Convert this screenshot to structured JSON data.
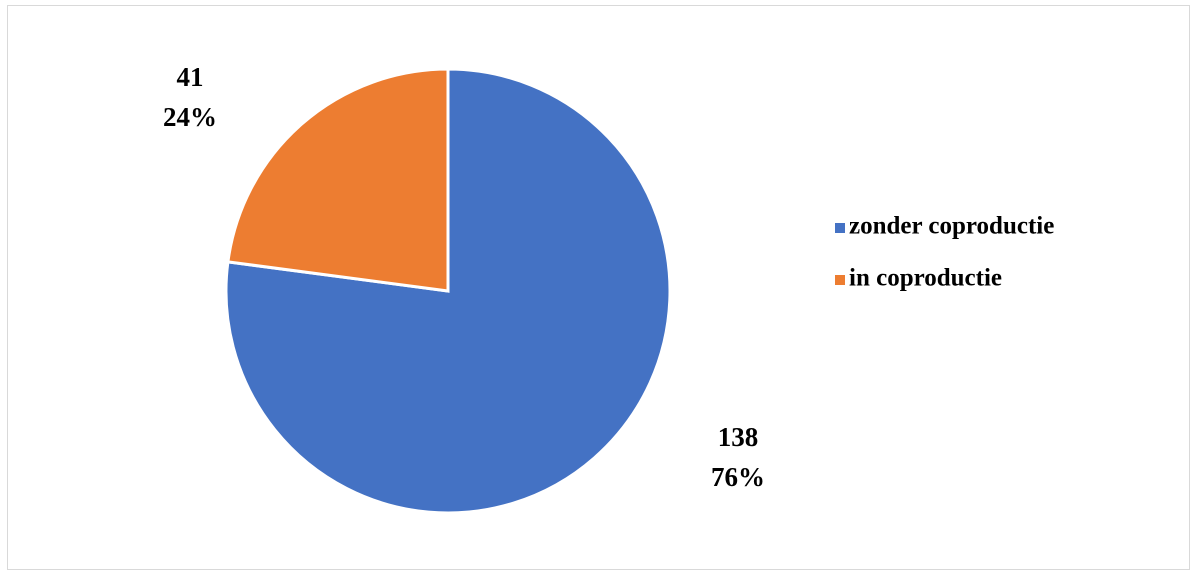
{
  "chart_data": {
    "type": "pie",
    "categories": [
      "zonder coproductie",
      "in coproductie"
    ],
    "values": [
      138,
      41
    ],
    "percent_labels": [
      "76%",
      "24%"
    ],
    "colors": [
      "#4472c4",
      "#ed7d31"
    ],
    "legend": "right"
  }
}
